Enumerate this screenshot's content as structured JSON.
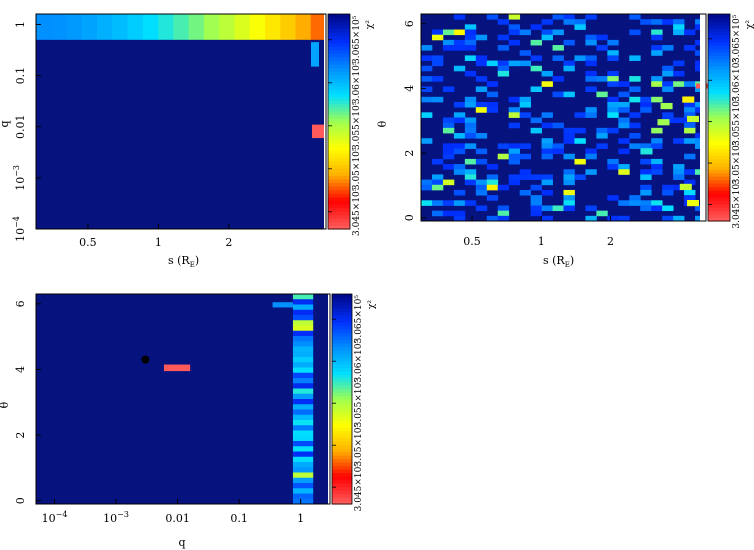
{
  "figure": {
    "colormap": [
      "#ff5a5a",
      "#ff0000",
      "#ffb000",
      "#ffff00",
      "#a0ff50",
      "#00e0ff",
      "#0090ff",
      "#0030ff",
      "#000a8c"
    ],
    "background_color": "#06127e",
    "panels": [
      {
        "id": "s-q",
        "xlabel": "s (R",
        "xlabel_sub": "E",
        "xlabel_close": ")",
        "ylabel": "q",
        "x_ticks": [
          "0.5",
          "1",
          "2"
        ],
        "y_ticks": [
          {
            "base": "10",
            "exp": "−4"
          },
          {
            "base": "10",
            "exp": "−3"
          },
          {
            "base": "",
            "exp": "",
            "text": "0.01"
          },
          {
            "base": "",
            "exp": "",
            "text": "0.1"
          },
          {
            "base": "",
            "exp": "",
            "text": "1"
          }
        ],
        "colorbar": {
          "ticks": [
            "3.045×10⁵",
            "3.05×10⁵",
            "3.055×10⁵",
            "3.06×10⁵",
            "3.065×10⁵"
          ],
          "label": "χ²"
        }
      },
      {
        "id": "s-theta",
        "xlabel": "s (R",
        "xlabel_sub": "E",
        "xlabel_close": ")",
        "ylabel": "θ",
        "x_ticks": [
          "0.5",
          "1",
          "2"
        ],
        "y_ticks": [
          "0",
          "2",
          "4",
          "6"
        ],
        "colorbar": {
          "ticks": [
            "3.045×10⁵",
            "3.05×10⁵",
            "3.055×10⁵",
            "3.06×10⁵",
            "3.065×10⁵"
          ],
          "label": "χ²"
        }
      },
      {
        "id": "q-theta",
        "xlabel": "q",
        "ylabel": "θ",
        "x_ticks": [
          {
            "base": "10",
            "exp": "−4"
          },
          {
            "base": "10",
            "exp": "−3"
          },
          {
            "base": "",
            "exp": "",
            "text": "0.01"
          },
          {
            "base": "",
            "exp": "",
            "text": "0.1"
          },
          {
            "base": "",
            "exp": "",
            "text": "1"
          }
        ],
        "y_ticks": [
          "0",
          "2",
          "4",
          "6"
        ],
        "colorbar": {
          "ticks": [
            "3.045×10⁵",
            "3.05×10⁵",
            "3.055×10⁵",
            "3.06×10⁵",
            "3.065×10⁵"
          ],
          "label": "χ²"
        }
      }
    ]
  },
  "chart_data": [
    {
      "type": "heatmap",
      "title": "",
      "xlabel": "s (R_E)",
      "ylabel": "q",
      "x_scale": "log",
      "y_scale": "log",
      "xlim": [
        0.3,
        5.2
      ],
      "ylim": [
        0.0001,
        1.6
      ],
      "colorbar_label": "χ²",
      "colorbar_range": [
        304300,
        306800
      ],
      "colorbar_ticks": [
        304500,
        305000,
        305500,
        306000,
        306500
      ],
      "grid": false,
      "features": [
        {
          "description": "bright band near q≈1 across all s, brightest at largest s",
          "q": 1,
          "s_range": [
            0.3,
            5.2
          ]
        },
        {
          "description": "minimum-χ² cell",
          "s": 4.8,
          "q": 0.008
        }
      ]
    },
    {
      "type": "heatmap",
      "title": "",
      "xlabel": "s (R_E)",
      "ylabel": "θ",
      "x_scale": "log",
      "y_scale": "linear",
      "xlim": [
        0.3,
        5.2
      ],
      "ylim": [
        -0.1,
        6.3
      ],
      "colorbar_label": "χ²",
      "colorbar_range": [
        304300,
        306800
      ],
      "colorbar_ticks": [
        304500,
        305000,
        305500,
        306000,
        306500
      ],
      "grid": false,
      "features": [
        {
          "description": "minimum-χ² cell",
          "s": 4.8,
          "theta": 4.05
        }
      ]
    },
    {
      "type": "heatmap",
      "title": "",
      "xlabel": "q",
      "ylabel": "θ",
      "x_scale": "log",
      "y_scale": "linear",
      "xlim": [
        5e-05,
        3
      ],
      "ylim": [
        -0.1,
        6.3
      ],
      "colorbar_label": "χ²",
      "colorbar_range": [
        304300,
        306800
      ],
      "colorbar_ticks": [
        304500,
        305000,
        305500,
        306000,
        306500
      ],
      "grid": false,
      "features": [
        {
          "description": "minimum-χ² cell",
          "q": 0.008,
          "theta": 4.05
        },
        {
          "description": "black marker",
          "q": 0.003,
          "theta": 4.3
        },
        {
          "description": "bright column near q≈1 across all θ",
          "q": 1
        }
      ]
    }
  ]
}
